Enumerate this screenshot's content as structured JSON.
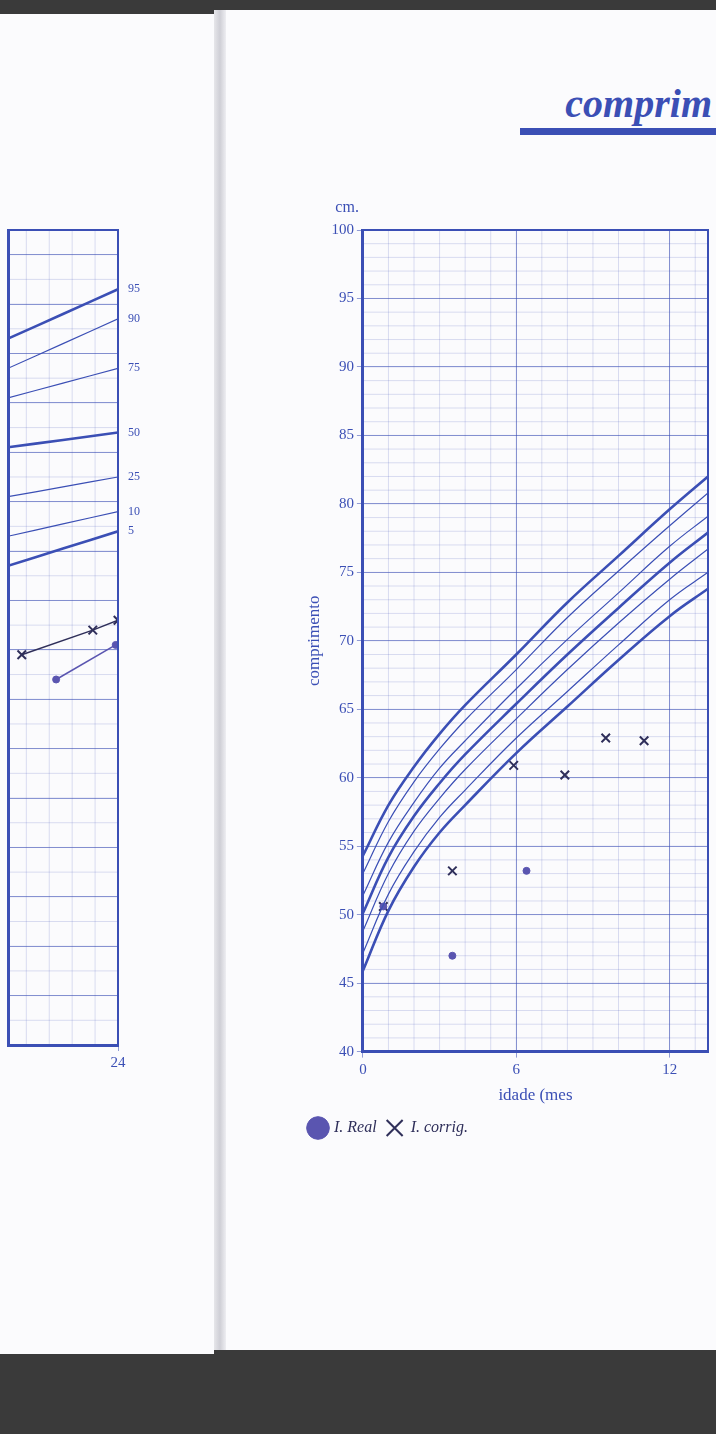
{
  "chart_data": [
    {
      "type": "line",
      "grid": true,
      "tick_labels": "x",
      "xlim": [
        19.2,
        24
      ],
      "xticks": [
        24
      ],
      "ylim": [
        0,
        16.5
      ],
      "yticks": [
        0,
        1,
        2,
        3,
        4,
        5,
        6,
        7,
        8,
        9,
        10,
        11,
        12,
        13,
        14,
        15,
        16
      ],
      "series": [
        {
          "name": "95",
          "type": "line",
          "color": "#3b4fb5",
          "line_style": "thick",
          "x": [
            19.2,
            21.6,
            24
          ],
          "values": [
            14.3,
            14.8,
            15.3
          ]
        },
        {
          "name": "90",
          "type": "line",
          "color": "#3b4fb5",
          "line_style": "thin",
          "x": [
            19.2,
            21.6,
            24
          ],
          "values": [
            13.7,
            14.2,
            14.7
          ]
        },
        {
          "name": "75",
          "type": "line",
          "color": "#3b4fb5",
          "line_style": "thin",
          "x": [
            19.2,
            21.6,
            24
          ],
          "values": [
            13.1,
            13.4,
            13.7
          ]
        },
        {
          "name": "50",
          "type": "line",
          "color": "#3b4fb5",
          "line_style": "thick",
          "x": [
            19.2,
            21.6,
            24
          ],
          "values": [
            12.1,
            12.25,
            12.4
          ]
        },
        {
          "name": "25",
          "type": "line",
          "color": "#3b4fb5",
          "line_style": "thin",
          "x": [
            19.2,
            21.6,
            24
          ],
          "values": [
            11.1,
            11.3,
            11.5
          ]
        },
        {
          "name": "10",
          "type": "line",
          "color": "#3b4fb5",
          "line_style": "thin",
          "x": [
            19.2,
            21.6,
            24
          ],
          "values": [
            10.3,
            10.55,
            10.8
          ]
        },
        {
          "name": "5",
          "type": "line",
          "color": "#3b4fb5",
          "line_style": "thick",
          "x": [
            19.2,
            21.6,
            24
          ],
          "values": [
            9.7,
            10.05,
            10.4
          ]
        },
        {
          "type": "scatter",
          "marker": "cross",
          "line_style": "solid",
          "color": "#2f2f5a",
          "x": [
            19.8,
            22.9,
            24
          ],
          "values": [
            7.9,
            8.4,
            8.6
          ]
        },
        {
          "type": "scatter",
          "marker": "dot",
          "line_style": "solid",
          "color": "#5a55b0",
          "x": [
            21.3,
            23.9
          ],
          "values": [
            7.4,
            8.1
          ]
        }
      ]
    },
    {
      "type": "line",
      "title": "comprim",
      "xlabel": "idade (mes",
      "ylabel": "comprimento",
      "annotations": [
        "cm."
      ],
      "legend": "bottom-left",
      "grid": true,
      "xlim": [
        0,
        13.5
      ],
      "xticks": [
        0,
        6,
        12
      ],
      "ylim": [
        40,
        100
      ],
      "yticks": [
        40,
        45,
        50,
        55,
        60,
        65,
        70,
        75,
        80,
        85,
        90,
        95,
        100
      ],
      "series": [
        {
          "type": "line",
          "color": "#3b4fb5",
          "line_style": "thick",
          "x": [
            0,
            1,
            2,
            3,
            4,
            6,
            8,
            10,
            12,
            13.5
          ],
          "values": [
            54.3,
            58.0,
            60.8,
            63.2,
            65.3,
            69.0,
            72.8,
            76.2,
            79.6,
            82.0
          ]
        },
        {
          "type": "line",
          "color": "#3b4fb5",
          "line_style": "thin",
          "x": [
            0,
            1,
            2,
            3,
            4,
            6,
            8,
            10,
            12,
            13.5
          ],
          "values": [
            53.0,
            56.8,
            59.7,
            62.1,
            64.2,
            67.9,
            71.7,
            75.1,
            78.4,
            80.8
          ]
        },
        {
          "type": "line",
          "color": "#3b4fb5",
          "line_style": "thin",
          "x": [
            0,
            1,
            2,
            3,
            4,
            6,
            8,
            10,
            12,
            13.5
          ],
          "values": [
            51.4,
            55.3,
            58.2,
            60.7,
            62.7,
            66.5,
            70.1,
            73.5,
            76.9,
            79.1
          ]
        },
        {
          "type": "line",
          "color": "#3b4fb5",
          "line_style": "thick",
          "x": [
            0,
            1,
            2,
            3,
            4,
            6,
            8,
            10,
            12,
            13.5
          ],
          "values": [
            50.1,
            54.2,
            57.2,
            59.6,
            61.7,
            65.4,
            69.0,
            72.4,
            75.7,
            77.9
          ]
        },
        {
          "type": "line",
          "color": "#3b4fb5",
          "line_style": "thin",
          "x": [
            0,
            1,
            2,
            3,
            4,
            6,
            8,
            10,
            12,
            13.5
          ],
          "values": [
            48.8,
            53.0,
            56.1,
            58.5,
            60.6,
            64.3,
            67.9,
            71.3,
            74.5,
            76.7
          ]
        },
        {
          "type": "line",
          "color": "#3b4fb5",
          "line_style": "thin",
          "x": [
            0,
            1,
            2,
            3,
            4,
            6,
            8,
            10,
            12,
            13.5
          ],
          "values": [
            47.2,
            51.5,
            54.6,
            57.1,
            59.1,
            62.9,
            66.3,
            69.7,
            73.0,
            75.0
          ]
        },
        {
          "type": "line",
          "color": "#3b4fb5",
          "line_style": "thick",
          "x": [
            0,
            1,
            2,
            3,
            4,
            6,
            8,
            10,
            12,
            13.5
          ],
          "values": [
            45.9,
            50.3,
            53.5,
            56.0,
            58.0,
            61.8,
            65.2,
            68.6,
            71.8,
            73.8
          ]
        },
        {
          "name": "I. Real",
          "type": "scatter",
          "marker": "dot",
          "color": "#5a55b0",
          "x": [
            0.8,
            3.5,
            6.4
          ],
          "values": [
            50.6,
            47.0,
            53.2
          ]
        },
        {
          "name": "I. corrig.",
          "type": "scatter",
          "marker": "cross",
          "color": "#2f2f5a",
          "x": [
            0.8,
            3.5,
            5.9,
            7.9,
            9.5,
            11
          ],
          "values": [
            50.6,
            53.2,
            60.9,
            60.2,
            62.9,
            62.7
          ]
        }
      ]
    }
  ]
}
